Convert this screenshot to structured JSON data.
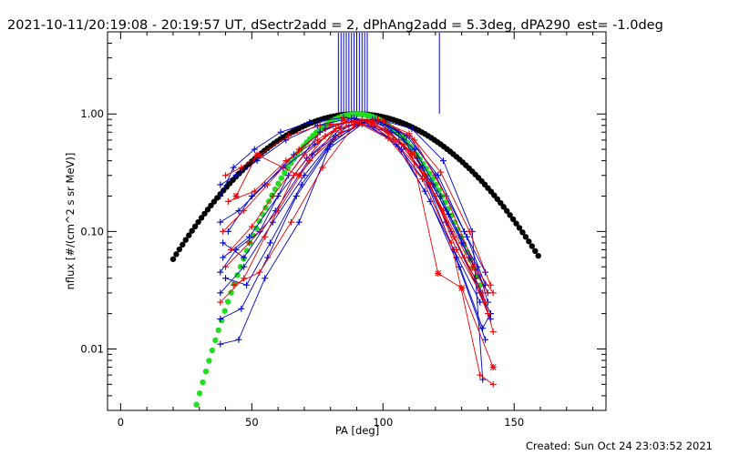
{
  "chart_data": {
    "type": "scatter",
    "title": "2021-10-11/20:19:08 - 20:19:57 UT, dSectr2add = 2, dPhAng2add = 5.3deg, dPA290_est= -1.0deg",
    "xlabel": "PA [deg]",
    "ylabel": "nflux [#/(cm^2 s sr MeV)]",
    "xlim": [
      -5,
      185
    ],
    "ylim": [
      0.003,
      5
    ],
    "yscale": "log",
    "x_ticks": [
      0,
      50,
      100,
      150
    ],
    "x_tick_labels": [
      "0",
      "50",
      "100",
      "150"
    ],
    "y_ticks": [
      0.01,
      0.1,
      1.0
    ],
    "y_tick_labels": [
      "0.01",
      "0.10",
      "1.00"
    ],
    "footer": "Created: Sun Oct 24 23:03:52 2021",
    "colors": {
      "fit_wide": "#000000",
      "fit_narrow": "#22dd22",
      "series_a": "#0000cc",
      "series_b": "#ee0000"
    },
    "pa_marks": {
      "color": "#0000cc",
      "x": [
        83,
        84,
        85,
        86,
        87,
        88,
        89,
        90,
        91,
        92,
        93,
        94,
        121.5
      ]
    },
    "fits": [
      {
        "style": "dots",
        "color": "#000000",
        "x_range": [
          20,
          160
        ],
        "center": 90,
        "width": 41.5
      },
      {
        "style": "dots",
        "color": "#22dd22",
        "x_range": [
          26.5,
          138
        ],
        "center": 90,
        "width": 25.6
      }
    ],
    "series": [
      {
        "color": "#0000cc",
        "marker": "plus",
        "x": [
          38,
          44,
          52,
          63,
          75,
          88,
          101,
          112,
          122,
          133,
          140
        ],
        "values": [
          0.25,
          0.3,
          0.4,
          0.6,
          0.8,
          0.92,
          0.8,
          0.5,
          0.2,
          0.06,
          0.03
        ]
      },
      {
        "color": "#0000cc",
        "marker": "plus",
        "x": [
          38,
          45,
          55,
          66,
          78,
          90,
          103,
          114,
          124,
          135,
          141
        ],
        "values": [
          0.12,
          0.15,
          0.25,
          0.45,
          0.75,
          0.9,
          0.7,
          0.35,
          0.12,
          0.04,
          0.02
        ]
      },
      {
        "color": "#0000cc",
        "marker": "plus",
        "x": [
          38,
          47,
          58,
          70,
          82,
          93,
          105,
          116,
          127,
          137
        ],
        "values": [
          0.03,
          0.05,
          0.12,
          0.3,
          0.65,
          0.85,
          0.55,
          0.22,
          0.07,
          0.025
        ]
      },
      {
        "color": "#0000cc",
        "marker": "plus",
        "x": [
          38,
          45,
          55,
          68,
          80,
          91,
          104,
          117,
          128,
          138,
          141
        ],
        "values": [
          0.011,
          0.012,
          0.04,
          0.12,
          0.55,
          0.85,
          0.6,
          0.25,
          0.06,
          0.015,
          0.02
        ]
      },
      {
        "color": "#0000cc",
        "marker": "plus",
        "x": [
          38,
          43,
          51,
          61,
          72,
          85,
          98,
          110,
          120,
          131,
          139
        ],
        "values": [
          0.2,
          0.35,
          0.5,
          0.7,
          0.85,
          0.93,
          0.88,
          0.65,
          0.3,
          0.1,
          0.045
        ]
      },
      {
        "color": "#0000cc",
        "marker": "plus",
        "x": [
          39,
          49,
          60,
          71,
          84,
          96,
          108,
          119,
          130,
          140
        ],
        "values": [
          0.06,
          0.09,
          0.2,
          0.42,
          0.75,
          0.9,
          0.6,
          0.25,
          0.08,
          0.03
        ]
      },
      {
        "color": "#0000cc",
        "marker": "plus",
        "x": [
          40,
          48,
          57,
          69,
          81,
          94,
          107,
          118,
          129,
          139
        ],
        "values": [
          0.04,
          0.035,
          0.08,
          0.25,
          0.6,
          0.88,
          0.5,
          0.18,
          0.05,
          0.012
        ]
      },
      {
        "color": "#0000cc",
        "marker": "plus",
        "x": [
          38,
          46,
          56,
          67,
          79,
          92,
          102,
          113,
          125,
          136,
          140
        ],
        "values": [
          0.018,
          0.022,
          0.06,
          0.2,
          0.5,
          0.82,
          0.7,
          0.42,
          0.14,
          0.05,
          0.025
        ]
      },
      {
        "color": "#0000cc",
        "marker": "plus",
        "x": [
          41,
          50,
          62,
          74,
          86,
          97,
          109,
          121,
          132,
          139
        ],
        "values": [
          0.1,
          0.2,
          0.35,
          0.55,
          0.85,
          0.9,
          0.65,
          0.3,
          0.09,
          0.035
        ]
      },
      {
        "color": "#0000cc",
        "marker": "plus",
        "x": [
          39,
          47,
          59,
          73,
          87,
          100,
          111,
          123,
          134,
          138
        ],
        "values": [
          0.08,
          0.06,
          0.15,
          0.45,
          0.8,
          0.88,
          0.75,
          0.4,
          0.1,
          0.0055
        ]
      },
      {
        "color": "#0000cc",
        "marker": "plus",
        "x": [
          38,
          44,
          53,
          64,
          76,
          89,
          99,
          106,
          115,
          126,
          137,
          141
        ],
        "values": [
          0.045,
          0.07,
          0.1,
          0.3,
          0.7,
          0.92,
          0.85,
          0.7,
          0.35,
          0.1,
          0.03,
          0.018
        ]
      },
      {
        "color": "#ee0000",
        "marker": "plus",
        "x": [
          40,
          46,
          53,
          64,
          76,
          88,
          101,
          112,
          123,
          134,
          140
        ],
        "values": [
          0.3,
          0.35,
          0.45,
          0.65,
          0.8,
          0.85,
          0.75,
          0.45,
          0.15,
          0.05,
          0.03
        ]
      },
      {
        "color": "#ee0000",
        "marker": "plus",
        "x": [
          39,
          47,
          56,
          68,
          80,
          92,
          104,
          116,
          127,
          138,
          142
        ],
        "values": [
          0.1,
          0.15,
          0.25,
          0.5,
          0.8,
          0.9,
          0.6,
          0.3,
          0.09,
          0.03,
          0.014
        ]
      },
      {
        "color": "#ee0000",
        "marker": "plus",
        "x": [
          40,
          49,
          60,
          72,
          84,
          96,
          108,
          120,
          131,
          140
        ],
        "values": [
          0.05,
          0.08,
          0.15,
          0.4,
          0.7,
          0.87,
          0.55,
          0.2,
          0.06,
          0.02
        ]
      },
      {
        "color": "#ee0000",
        "marker": "plus",
        "x": [
          41,
          51,
          63,
          75,
          86,
          98,
          110,
          122,
          133,
          141
        ],
        "values": [
          0.18,
          0.22,
          0.4,
          0.6,
          0.85,
          0.9,
          0.68,
          0.32,
          0.1,
          0.035
        ]
      },
      {
        "color": "#ee0000",
        "marker": "plus",
        "x": [
          42,
          50,
          58,
          70,
          82,
          94,
          106,
          118,
          128,
          139
        ],
        "values": [
          0.07,
          0.11,
          0.2,
          0.45,
          0.75,
          0.88,
          0.6,
          0.25,
          0.07,
          0.025
        ]
      },
      {
        "color": "#ee0000",
        "marker": "plus",
        "x": [
          43,
          53,
          65,
          77,
          89,
          100,
          112,
          124,
          135,
          142
        ],
        "values": [
          0.035,
          0.045,
          0.12,
          0.35,
          0.8,
          0.88,
          0.6,
          0.2,
          0.05,
          0.03
        ]
      },
      {
        "color": "#ee0000",
        "marker": "star",
        "x": [
          44,
          52,
          68,
          85,
          96,
          111,
          121,
          130,
          142
        ],
        "values": [
          0.2,
          0.45,
          0.3,
          0.9,
          0.85,
          0.46,
          0.044,
          0.033,
          0.007
        ]
      },
      {
        "color": "#ee0000",
        "marker": "plus",
        "x": [
          38,
          47,
          55,
          66,
          78,
          90,
          102,
          115,
          126,
          137,
          142
        ],
        "values": [
          0.025,
          0.04,
          0.09,
          0.3,
          0.65,
          0.85,
          0.62,
          0.28,
          0.08,
          0.006,
          0.005
        ]
      }
    ]
  }
}
